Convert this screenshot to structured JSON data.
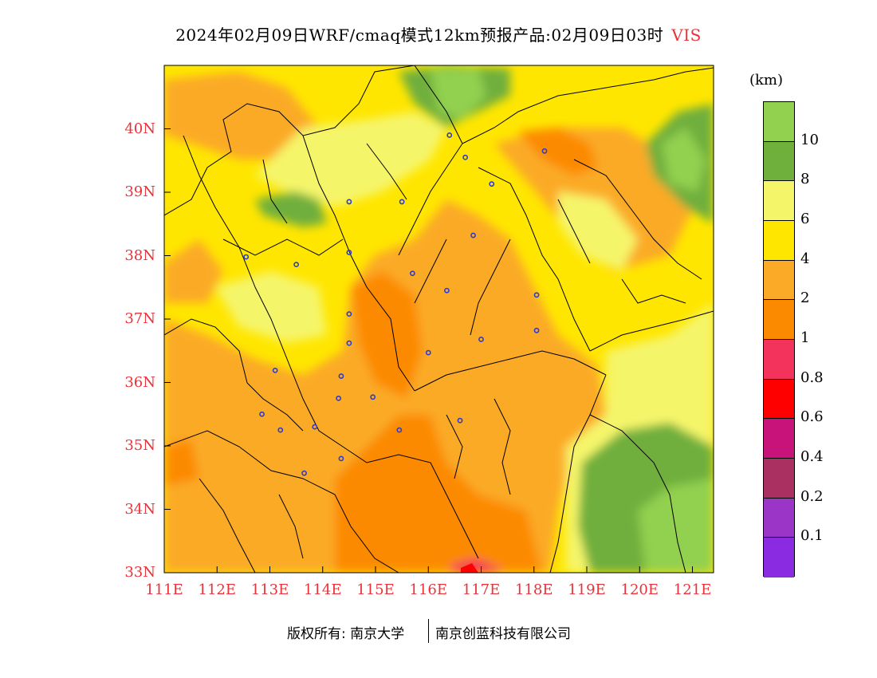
{
  "header": {
    "title": "2024年02月09日WRF/cmaq模式12km预报产品:02月09日03时",
    "variable": "VIS"
  },
  "map": {
    "latitude_labels": [
      "40N",
      "39N",
      "38N",
      "37N",
      "36N",
      "35N",
      "34N",
      "33N"
    ],
    "longitude_labels": [
      "111E",
      "112E",
      "113E",
      "114E",
      "115E",
      "116E",
      "117E",
      "118E",
      "119E",
      "120E",
      "121E"
    ],
    "extent": {
      "lon_min": 111,
      "lon_max": 121.4,
      "lat_min": 33,
      "lat_max": 41
    },
    "stations": [
      {
        "lon": 116.4,
        "lat": 39.9
      },
      {
        "lon": 116.7,
        "lat": 39.55
      },
      {
        "lon": 118.2,
        "lat": 39.65
      },
      {
        "lon": 117.2,
        "lat": 39.13
      },
      {
        "lon": 114.5,
        "lat": 38.85
      },
      {
        "lon": 115.5,
        "lat": 38.85
      },
      {
        "lon": 116.85,
        "lat": 38.32
      },
      {
        "lon": 112.55,
        "lat": 37.98
      },
      {
        "lon": 113.5,
        "lat": 37.86
      },
      {
        "lon": 114.5,
        "lat": 38.05
      },
      {
        "lon": 115.7,
        "lat": 37.72
      },
      {
        "lon": 116.35,
        "lat": 37.45
      },
      {
        "lon": 118.05,
        "lat": 37.38
      },
      {
        "lon": 114.5,
        "lat": 37.08
      },
      {
        "lon": 118.05,
        "lat": 36.82
      },
      {
        "lon": 117.0,
        "lat": 36.68
      },
      {
        "lon": 114.5,
        "lat": 36.62
      },
      {
        "lon": 116.0,
        "lat": 36.47
      },
      {
        "lon": 113.1,
        "lat": 36.19
      },
      {
        "lon": 114.35,
        "lat": 36.1
      },
      {
        "lon": 114.3,
        "lat": 35.75
      },
      {
        "lon": 114.95,
        "lat": 35.77
      },
      {
        "lon": 112.85,
        "lat": 35.5
      },
      {
        "lon": 113.2,
        "lat": 35.25
      },
      {
        "lon": 113.85,
        "lat": 35.3
      },
      {
        "lon": 115.45,
        "lat": 35.25
      },
      {
        "lon": 116.6,
        "lat": 35.4
      },
      {
        "lon": 114.35,
        "lat": 34.8
      },
      {
        "lon": 113.65,
        "lat": 34.57
      }
    ]
  },
  "legend": {
    "unit": "(km)",
    "colors": [
      "#92d050",
      "#6faf3c",
      "#f5f56a",
      "#ffe600",
      "#fbaa28",
      "#fc8a00",
      "#f4335c",
      "#ff0000",
      "#c8147a",
      "#a93060",
      "#9a35c8",
      "#8a2be2"
    ],
    "labels": [
      "10",
      "8",
      "6",
      "4",
      "2",
      "1",
      "0.8",
      "0.6",
      "0.4",
      "0.2",
      "0.1"
    ]
  },
  "footer": {
    "copyright": "版权所有: 南京大学",
    "company": "南京创蓝科技有限公司"
  }
}
